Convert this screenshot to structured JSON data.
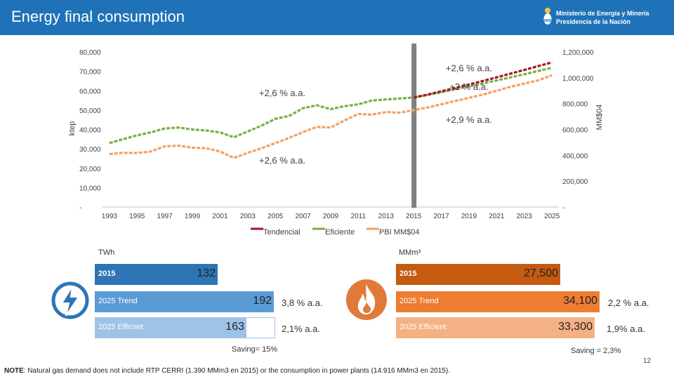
{
  "header": {
    "title": "Energy final consumption",
    "logo_line1": "Ministerio de Energía y Minería",
    "logo_line2": "Presidencia de la Nación"
  },
  "chart_data": {
    "type": "line",
    "y_left_label": "ktep",
    "y_right_label": "MM$04",
    "y_left_ticks": [
      "80,000",
      "70,000",
      "60,000",
      "50,000",
      "40,000",
      "30,000",
      "20,000",
      "10,000",
      "-"
    ],
    "y_right_ticks": [
      "1,200,000",
      "1,000,000",
      "800,000",
      "600,000",
      "400,000",
      "200,000",
      "-"
    ],
    "ylim_left": [
      0,
      80000
    ],
    "ylim_right": [
      0,
      1200000
    ],
    "x_ticks": [
      "1993",
      "1995",
      "1997",
      "1999",
      "2001",
      "2003",
      "2005",
      "2007",
      "2009",
      "2011",
      "2013",
      "2015",
      "2017",
      "2019",
      "2021",
      "2023",
      "2025"
    ],
    "xlim": [
      1992.5,
      2025.5
    ],
    "divider_year": 2015,
    "series": [
      {
        "name": "Tendencial",
        "axis": "left",
        "color": "#a31622",
        "x": [
          2015,
          2016,
          2017,
          2018,
          2019,
          2020,
          2021,
          2022,
          2023,
          2024,
          2025
        ],
        "values": [
          56500,
          58000,
          59700,
          61400,
          63200,
          65000,
          66900,
          68800,
          70700,
          72700,
          74600
        ]
      },
      {
        "name": "Eficiente",
        "axis": "left",
        "color": "#78b043",
        "x": [
          1993,
          1994,
          1995,
          1996,
          1997,
          1998,
          1999,
          2000,
          2001,
          2002,
          2003,
          2004,
          2005,
          2006,
          2007,
          2008,
          2009,
          2010,
          2011,
          2012,
          2013,
          2014,
          2015,
          2016,
          2017,
          2018,
          2019,
          2020,
          2021,
          2022,
          2023,
          2024,
          2025
        ],
        "values": [
          33000,
          35000,
          37000,
          38500,
          40500,
          41000,
          40000,
          39500,
          38500,
          36000,
          39000,
          42000,
          45500,
          47000,
          51000,
          52500,
          50500,
          52000,
          53000,
          55000,
          55500,
          56000,
          56500,
          57800,
          59200,
          60700,
          62200,
          63700,
          65300,
          66900,
          68500,
          70200,
          71800
        ]
      },
      {
        "name": "PBI MM$04",
        "axis": "right",
        "color": "#f4a061",
        "x": [
          1993,
          1994,
          1995,
          1996,
          1997,
          1998,
          1999,
          2000,
          2001,
          2002,
          2003,
          2004,
          2005,
          2006,
          2007,
          2008,
          2009,
          2010,
          2011,
          2012,
          2013,
          2014,
          2015,
          2016,
          2017,
          2018,
          2019,
          2020,
          2021,
          2022,
          2023,
          2024,
          2025
        ],
        "values": [
          410000,
          420000,
          418000,
          430000,
          470000,
          475000,
          460000,
          455000,
          430000,
          380000,
          420000,
          455000,
          495000,
          535000,
          580000,
          620000,
          615000,
          670000,
          720000,
          715000,
          735000,
          730000,
          750000,
          770000,
          795000,
          820000,
          845000,
          870000,
          900000,
          930000,
          955000,
          980000,
          1020000
        ]
      }
    ],
    "annotations": [
      {
        "text": "+2,6 % a.a.",
        "x": 2019.0,
        "y_left": 70000
      },
      {
        "text": "+2,6 % a.a.",
        "x": 2005.5,
        "y_left": 57200
      },
      {
        "text": "+2 % a.a.",
        "x": 2019.0,
        "y_left": 60500
      },
      {
        "text": "+2,9 % a.a.",
        "x": 2019.0,
        "y_left": 43500
      },
      {
        "text": "+2,6 % a.a.",
        "x": 2005.5,
        "y_left": 22500
      }
    ]
  },
  "electricity": {
    "unit": "TWh",
    "icon": "lightning-icon",
    "bars": [
      {
        "label": "2015",
        "value": 132,
        "value_text": "132",
        "color": "#2e75b6"
      },
      {
        "label": "2025 Trend",
        "value": 192,
        "value_text": "192",
        "color": "#5b9bd5"
      },
      {
        "label": "2025 Efficnet",
        "value": 163,
        "value_text": "163",
        "color": "#9dc3e6"
      }
    ],
    "rates": [
      "3,8 % a.a.",
      "2,1% a.a."
    ],
    "saving": "Saving= 15%"
  },
  "gas": {
    "unit": "MMm³",
    "icon": "flame-icon",
    "bars": [
      {
        "label": "2015",
        "value": 27500,
        "value_text": "27,500",
        "color": "#c55a11"
      },
      {
        "label": "2025 Trend",
        "value": 34100,
        "value_text": "34,100",
        "color": "#ed7d31"
      },
      {
        "label": "2025 Efficient",
        "value": 33300,
        "value_text": "33,300",
        "color": "#f4b183"
      }
    ],
    "rates": [
      "2,2 % a.a.",
      "1,9% a.a."
    ],
    "saving": "Saving = 2,3%"
  },
  "footer": {
    "note_label": "NOTE",
    "note_text": ": Natural gas demand does not include RTP CERRI (1.390 MMm3 en 2015) or the consumption in power plants (14.916 MMm3 en 2015).",
    "page_number": "12"
  }
}
